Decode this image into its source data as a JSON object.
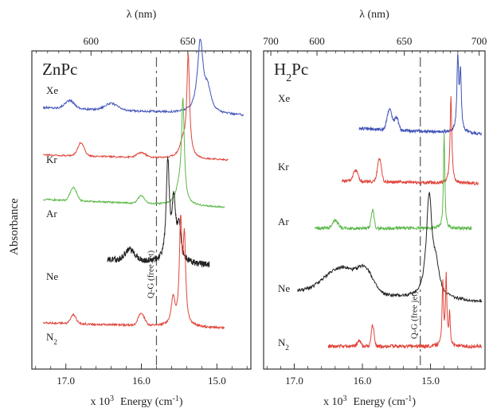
{
  "ylabel": "Absorbance",
  "chart_data": [
    {
      "type": "line",
      "title": "ZnPc",
      "top_axis_label": "λ (nm)",
      "top_ticks": [
        600,
        650,
        700
      ],
      "bottom_ticks": [
        "17.0",
        "16.0",
        "15.0"
      ],
      "xlabel_prefix": "x 10",
      "xlabel_exp": "3",
      "xlabel_main": "Energy (cm",
      "xlabel_sup": "-1",
      "xlabel_close": ")",
      "xlim": [
        17.45,
        14.55
      ],
      "ylabel": "Absorbance",
      "dashed_line": {
        "x": 15.8,
        "label": "Q-G (free jet)"
      },
      "series": [
        {
          "name": "Xe",
          "color": "#3f52b8",
          "baseline": 0.96,
          "start": 17.3,
          "end": 14.65,
          "noise": 0.004,
          "ripple": [
            [
              16.95,
              0.03,
              0.09
            ],
            [
              16.4,
              0.025,
              0.12
            ]
          ],
          "peaks": [
            [
              15.22,
              0.27,
              0.045
            ],
            [
              15.12,
              0.08,
              0.05
            ]
          ],
          "drift": -0.03
        },
        {
          "name": "Kr",
          "color": "#e0443a",
          "baseline": 0.78,
          "start": 17.3,
          "end": 14.85,
          "noise": 0.003,
          "ripple": [
            [
              16.8,
              0.05,
              0.06
            ],
            [
              16.0,
              0.018,
              0.08
            ]
          ],
          "peaks": [
            [
              15.38,
              0.38,
              0.022
            ],
            [
              15.45,
              0.06,
              0.05
            ]
          ],
          "drift": -0.02
        },
        {
          "name": "Ar",
          "color": "#5cb84a",
          "baseline": 0.61,
          "start": 17.3,
          "end": 14.9,
          "noise": 0.003,
          "ripple": [
            [
              16.9,
              0.05,
              0.06
            ],
            [
              16.0,
              0.03,
              0.06
            ]
          ],
          "peaks": [
            [
              15.45,
              0.38,
              0.022
            ],
            [
              15.5,
              0.06,
              0.05
            ]
          ],
          "drift": -0.03
        },
        {
          "name": "Ne",
          "color": "#222222",
          "baseline": 0.38,
          "start": 16.45,
          "end": 15.1,
          "noise": 0.012,
          "ripple": [
            [
              16.15,
              0.04,
              0.1
            ]
          ],
          "peaks": [
            [
              15.65,
              0.37,
              0.025
            ],
            [
              15.57,
              0.22,
              0.03
            ],
            [
              15.5,
              0.12,
              0.03
            ]
          ],
          "drift": -0.02
        },
        {
          "name": "N2",
          "color": "#e0443a",
          "baseline": 0.14,
          "start": 17.3,
          "end": 14.9,
          "noise": 0.004,
          "ripple": [
            [
              16.9,
              0.035,
              0.05
            ],
            [
              16.0,
              0.045,
              0.06
            ]
          ],
          "peaks": [
            [
              15.48,
              0.38,
              0.02
            ],
            [
              15.43,
              0.32,
              0.02
            ],
            [
              15.58,
              0.1,
              0.03
            ]
          ],
          "drift": -0.02
        }
      ]
    },
    {
      "type": "line",
      "title": "H2Pc",
      "top_axis_label": "λ (nm)",
      "top_ticks": [
        600,
        650,
        700
      ],
      "bottom_ticks": [
        "17.0",
        "16.0",
        "15.0"
      ],
      "xlabel_prefix": "x 10",
      "xlabel_exp": "3",
      "xlabel_main": "Energy (cm",
      "xlabel_sup": "-1",
      "xlabel_close": ")",
      "xlim": [
        17.45,
        14.2
      ],
      "ylabel": "Absorbance",
      "dashed_line": {
        "x": 15.15,
        "label": "Q-G (free jet)"
      },
      "series": [
        {
          "name": "Xe",
          "color": "#3f52b8",
          "baseline": 0.88,
          "start": 16.05,
          "end": 14.25,
          "noise": 0.006,
          "ripple": [
            [
              15.6,
              0.08,
              0.05
            ],
            [
              15.5,
              0.05,
              0.04
            ]
          ],
          "peaks": [
            [
              14.6,
              0.28,
              0.015
            ],
            [
              14.56,
              0.22,
              0.015
            ]
          ],
          "drift": -0.02
        },
        {
          "name": "Kr",
          "color": "#e0443a",
          "baseline": 0.68,
          "start": 16.3,
          "end": 14.3,
          "noise": 0.006,
          "ripple": [
            [
              15.75,
              0.09,
              0.04
            ],
            [
              16.1,
              0.04,
              0.05
            ]
          ],
          "peaks": [
            [
              14.7,
              0.33,
              0.015
            ]
          ],
          "drift": -0.01
        },
        {
          "name": "Ar",
          "color": "#5cb84a",
          "baseline": 0.5,
          "start": 16.7,
          "end": 14.4,
          "noise": 0.006,
          "ripple": [
            [
              15.85,
              0.07,
              0.03
            ],
            [
              16.4,
              0.03,
              0.06
            ]
          ],
          "peaks": [
            [
              14.8,
              0.36,
              0.012
            ]
          ],
          "drift": 0.0
        },
        {
          "name": "Ne",
          "color": "#222222",
          "baseline": 0.26,
          "start": 16.95,
          "end": 14.25,
          "noise": 0.006,
          "ripple": [
            [
              16.3,
              0.1,
              0.35
            ],
            [
              15.95,
              0.07,
              0.15
            ]
          ],
          "peaks": [
            [
              15.02,
              0.38,
              0.05
            ],
            [
              14.92,
              0.1,
              0.06
            ]
          ],
          "drift": -0.04
        },
        {
          "name": "N2",
          "color": "#e0443a",
          "baseline": 0.05,
          "start": 16.5,
          "end": 14.25,
          "noise": 0.007,
          "ripple": [
            [
              15.85,
              0.08,
              0.03
            ],
            [
              16.05,
              0.02,
              0.04
            ]
          ],
          "peaks": [
            [
              14.82,
              0.24,
              0.012
            ],
            [
              14.77,
              0.26,
              0.012
            ],
            [
              14.72,
              0.12,
              0.012
            ]
          ],
          "drift": 0.0
        }
      ]
    }
  ]
}
